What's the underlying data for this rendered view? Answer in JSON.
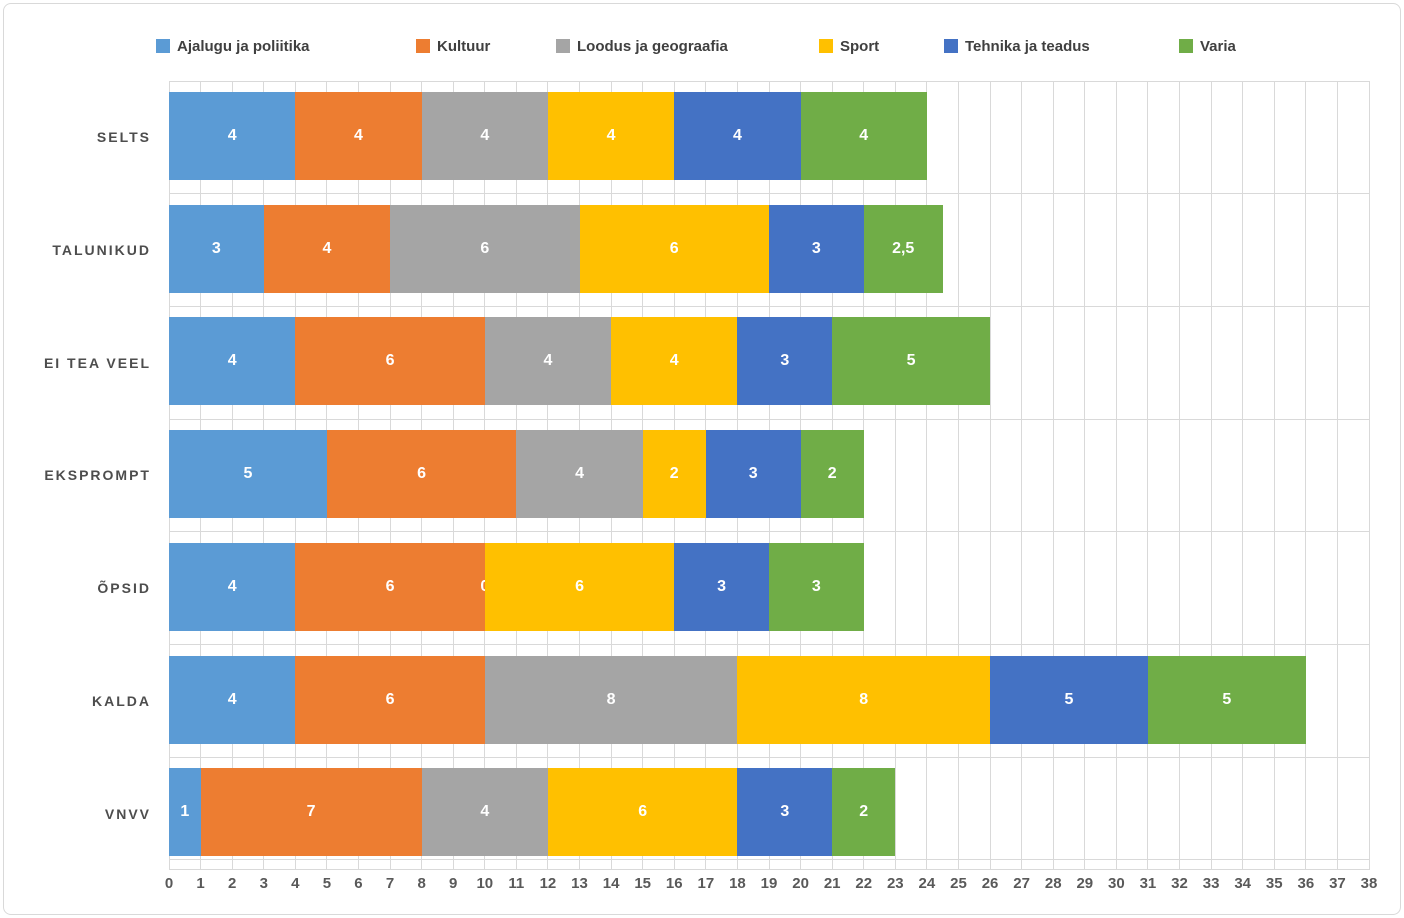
{
  "chart_data": {
    "type": "bar",
    "stacked": true,
    "orientation": "horizontal",
    "title": "",
    "categories": [
      "SELTS",
      "TALUNIKUD",
      "EI TEA VEEL",
      "EKSPROMPT",
      "ÕPSID",
      "KALDA",
      "VNVV"
    ],
    "series": [
      {
        "name": "Ajalugu ja poliitika",
        "color": "#5B9BD5",
        "values": [
          4,
          3,
          4,
          5,
          4,
          4,
          1
        ]
      },
      {
        "name": "Kultuur",
        "color": "#ED7D31",
        "values": [
          4,
          4,
          6,
          6,
          6,
          6,
          7
        ]
      },
      {
        "name": "Loodus ja geograafia",
        "color": "#A5A5A5",
        "values": [
          4,
          6,
          4,
          4,
          0,
          8,
          4
        ]
      },
      {
        "name": "Sport",
        "color": "#FFC000",
        "values": [
          4,
          6,
          4,
          2,
          6,
          8,
          6
        ]
      },
      {
        "name": "Tehnika ja teadus",
        "color": "#4472C4",
        "values": [
          4,
          3,
          3,
          3,
          3,
          5,
          3
        ]
      },
      {
        "name": "Varia",
        "color": "#70AD47",
        "values": [
          4,
          2.5,
          5,
          2,
          3,
          5,
          2
        ]
      }
    ],
    "category_totals": [
      24,
      24.5,
      26,
      22,
      22,
      36,
      23
    ],
    "value_axis": {
      "min": 0,
      "max": 38,
      "step": 1
    },
    "decimal_separator": ",",
    "data_labels": {
      "show": true,
      "color": "#FFFFFF"
    },
    "legend": {
      "position": "top"
    },
    "grid": {
      "vertical": true,
      "horizontal_category_boundaries": true,
      "color": "#D9D9D9"
    },
    "styles": {
      "axis_text_color": "#595959",
      "category_text_color": "#4D4D4D",
      "legend_text_color": "#404040",
      "frame_border_color": "#D9D9D9"
    }
  }
}
